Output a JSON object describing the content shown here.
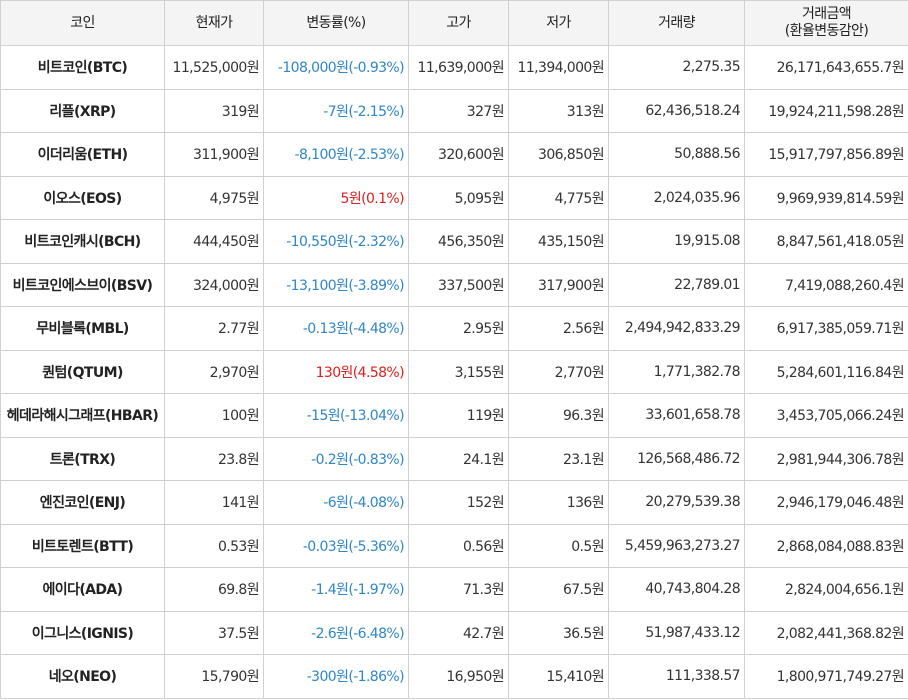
{
  "headers": [
    "코인",
    "현재가",
    "변동률(%)",
    "고가",
    "저가",
    "거래량",
    "거래금액",
    "(환율변동감안)"
  ],
  "colors": {
    "down": "#2f86c8",
    "up": "#e02020"
  },
  "rows": [
    {
      "name": "비트코인(BTC)",
      "price": "11,525,000원",
      "change": "-108,000원(-0.93%)",
      "dir": "down",
      "high": "11,639,000원",
      "low": "11,394,000원",
      "volume": "2,275.35",
      "amount": "26,171,643,655.7원"
    },
    {
      "name": "리플(XRP)",
      "price": "319원",
      "change": "-7원(-2.15%)",
      "dir": "down",
      "high": "327원",
      "low": "313원",
      "volume": "62,436,518.24",
      "amount": "19,924,211,598.28원"
    },
    {
      "name": "이더리움(ETH)",
      "price": "311,900원",
      "change": "-8,100원(-2.53%)",
      "dir": "down",
      "high": "320,600원",
      "low": "306,850원",
      "volume": "50,888.56",
      "amount": "15,917,797,856.89원"
    },
    {
      "name": "이오스(EOS)",
      "price": "4,975원",
      "change": "5원(0.1%)",
      "dir": "up",
      "high": "5,095원",
      "low": "4,775원",
      "volume": "2,024,035.96",
      "amount": "9,969,939,814.59원"
    },
    {
      "name": "비트코인캐시(BCH)",
      "price": "444,450원",
      "change": "-10,550원(-2.32%)",
      "dir": "down",
      "high": "456,350원",
      "low": "435,150원",
      "volume": "19,915.08",
      "amount": "8,847,561,418.05원"
    },
    {
      "name": "비트코인에스브이(BSV)",
      "price": "324,000원",
      "change": "-13,100원(-3.89%)",
      "dir": "down",
      "high": "337,500원",
      "low": "317,900원",
      "volume": "22,789.01",
      "amount": "7,419,088,260.4원"
    },
    {
      "name": "무비블록(MBL)",
      "price": "2.77원",
      "change": "-0.13원(-4.48%)",
      "dir": "down",
      "high": "2.95원",
      "low": "2.56원",
      "volume": "2,494,942,833.29",
      "amount": "6,917,385,059.71원"
    },
    {
      "name": "퀀텀(QTUM)",
      "price": "2,970원",
      "change": "130원(4.58%)",
      "dir": "up",
      "high": "3,155원",
      "low": "2,770원",
      "volume": "1,771,382.78",
      "amount": "5,284,601,116.84원"
    },
    {
      "name": "헤데라해시그래프(HBAR)",
      "price": "100원",
      "change": "-15원(-13.04%)",
      "dir": "down",
      "high": "119원",
      "low": "96.3원",
      "volume": "33,601,658.78",
      "amount": "3,453,705,066.24원"
    },
    {
      "name": "트론(TRX)",
      "price": "23.8원",
      "change": "-0.2원(-0.83%)",
      "dir": "down",
      "high": "24.1원",
      "low": "23.1원",
      "volume": "126,568,486.72",
      "amount": "2,981,944,306.78원"
    },
    {
      "name": "엔진코인(ENJ)",
      "price": "141원",
      "change": "-6원(-4.08%)",
      "dir": "down",
      "high": "152원",
      "low": "136원",
      "volume": "20,279,539.38",
      "amount": "2,946,179,046.48원"
    },
    {
      "name": "비트토렌트(BTT)",
      "price": "0.53원",
      "change": "-0.03원(-5.36%)",
      "dir": "down",
      "high": "0.56원",
      "low": "0.5원",
      "volume": "5,459,963,273.27",
      "amount": "2,868,084,088.83원"
    },
    {
      "name": "에이다(ADA)",
      "price": "69.8원",
      "change": "-1.4원(-1.97%)",
      "dir": "down",
      "high": "71.3원",
      "low": "67.5원",
      "volume": "40,743,804.28",
      "amount": "2,824,004,656.1원"
    },
    {
      "name": "이그니스(IGNIS)",
      "price": "37.5원",
      "change": "-2.6원(-6.48%)",
      "dir": "down",
      "high": "42.7원",
      "low": "36.5원",
      "volume": "51,987,433.12",
      "amount": "2,082,441,368.82원"
    },
    {
      "name": "네오(NEO)",
      "price": "15,790원",
      "change": "-300원(-1.86%)",
      "dir": "down",
      "high": "16,950원",
      "low": "15,410원",
      "volume": "111,338.57",
      "amount": "1,800,971,749.27원"
    }
  ]
}
